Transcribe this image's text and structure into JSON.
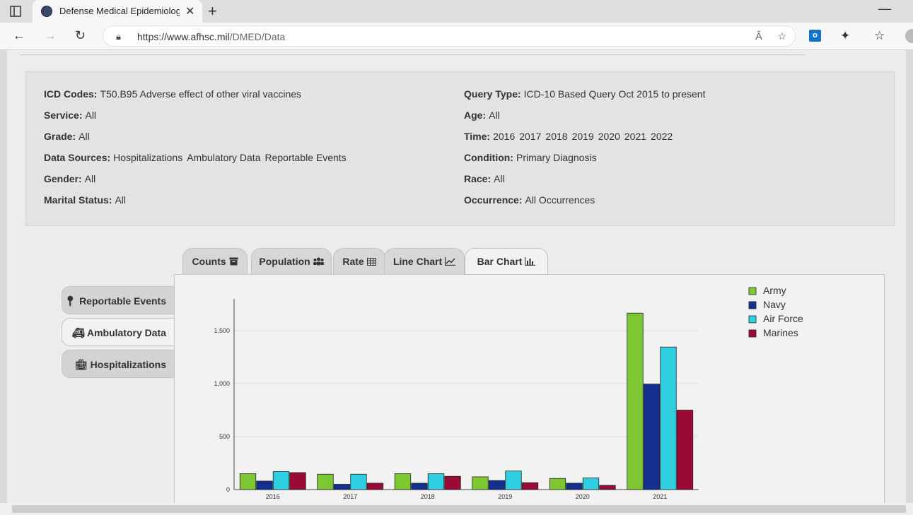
{
  "browser": {
    "tab_title": "Defense Medical Epidemiology D",
    "url_host": "https://www.afhsc.mil",
    "url_path": "/DMED/Data",
    "read_aloud": "Â"
  },
  "query": {
    "left": [
      {
        "label": "ICD Codes:",
        "values": [
          "T50.B95 Adverse effect of other viral vaccines"
        ]
      },
      {
        "label": "Service:",
        "values": [
          "All"
        ]
      },
      {
        "label": "Grade:",
        "values": [
          "All"
        ]
      },
      {
        "label": "Data Sources:",
        "values": [
          "Hospitalizations",
          "Ambulatory Data",
          "Reportable Events"
        ]
      },
      {
        "label": "Gender:",
        "values": [
          "All"
        ]
      },
      {
        "label": "Marital Status:",
        "values": [
          "All"
        ]
      }
    ],
    "right": [
      {
        "label": "Query Type:",
        "values": [
          "ICD-10 Based Query Oct 2015 to present"
        ]
      },
      {
        "label": "Age:",
        "values": [
          "All"
        ]
      },
      {
        "label": "Time:",
        "values": [
          "2016",
          "2017",
          "2018",
          "2019",
          "2020",
          "2021",
          "2022"
        ]
      },
      {
        "label": "Condition:",
        "values": [
          "Primary Diagnosis"
        ]
      },
      {
        "label": "Race:",
        "values": [
          "All"
        ]
      },
      {
        "label": "Occurrence:",
        "values": [
          "All Occurrences"
        ]
      }
    ]
  },
  "tabs": {
    "counts": "Counts",
    "population": "Population",
    "rate": "Rate",
    "line_chart": "Line Chart",
    "bar_chart": "Bar Chart"
  },
  "side_tabs": {
    "reportable": "Reportable Events",
    "ambulatory": "Ambulatory Data",
    "hospitalizations": "Hospitalizations"
  },
  "chart_data": {
    "type": "bar",
    "categories": [
      "2016",
      "2017",
      "2018",
      "2019",
      "2020",
      "2021"
    ],
    "series": [
      {
        "name": "Army",
        "color": "#7dc832",
        "values": [
          150,
          145,
          150,
          120,
          105,
          1665
        ]
      },
      {
        "name": "Navy",
        "color": "#13308f",
        "values": [
          80,
          50,
          60,
          85,
          60,
          995
        ]
      },
      {
        "name": "Air Force",
        "color": "#2dcfe0",
        "values": [
          170,
          145,
          150,
          175,
          110,
          1345
        ]
      },
      {
        "name": "Marines",
        "color": "#990a35",
        "values": [
          160,
          60,
          125,
          65,
          40,
          750
        ]
      }
    ],
    "yticks": [
      0,
      500,
      1000,
      1500
    ],
    "ytick_labels": [
      "0",
      "500",
      "1,000",
      "1,500"
    ],
    "ylim": [
      0,
      1800
    ],
    "grid": true,
    "legend": "top-right"
  }
}
